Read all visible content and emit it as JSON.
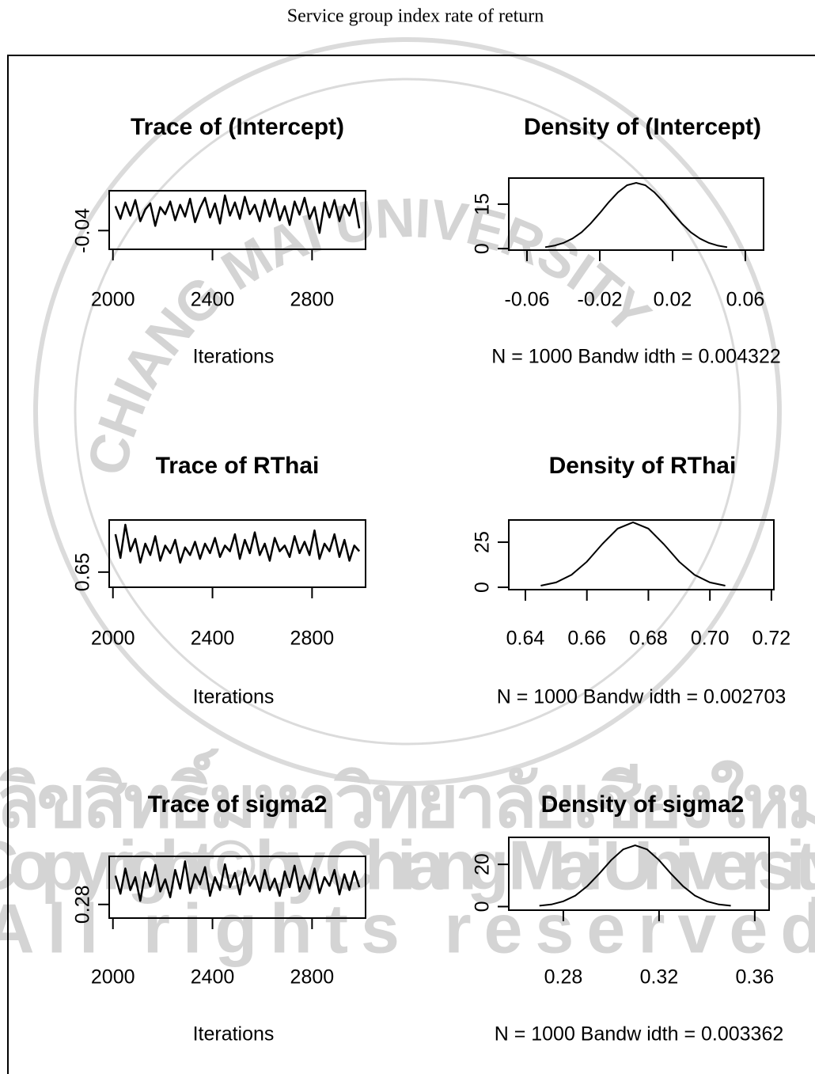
{
  "title": "Service group index rate of return",
  "watermark": [
    "ลิขสิทธิ์มหาวิทยาลัยเชียงใหม่",
    "Copyright© by Chiang Mai University",
    "All rights reserved",
    "CHIANG MAI UNIVERSITY"
  ],
  "chart_data": [
    {
      "type": "trace",
      "title": "Trace of (Intercept)",
      "xlabel": "Iterations",
      "color": "#000000",
      "x": [
        2010,
        2030,
        2050,
        2070,
        2090,
        2110,
        2130,
        2150,
        2170,
        2190,
        2210,
        2230,
        2250,
        2270,
        2290,
        2310,
        2330,
        2350,
        2370,
        2390,
        2410,
        2430,
        2450,
        2470,
        2490,
        2510,
        2530,
        2550,
        2570,
        2590,
        2610,
        2630,
        2650,
        2670,
        2690,
        2710,
        2730,
        2750,
        2770,
        2790,
        2810,
        2830,
        2850,
        2870,
        2890,
        2910,
        2930,
        2950,
        2970,
        2990
      ],
      "values": [
        0.012,
        -0.015,
        0.02,
        -0.008,
        0.025,
        -0.02,
        0.005,
        0.018,
        -0.03,
        0.01,
        -0.005,
        0.022,
        -0.018,
        0.015,
        -0.01,
        0.028,
        -0.022,
        0.008,
        0.03,
        -0.012,
        0.018,
        -0.025,
        0.035,
        -0.008,
        0.02,
        -0.015,
        0.032,
        -0.005,
        0.015,
        -0.02,
        0.025,
        -0.01,
        0.028,
        -0.018,
        0.012,
        -0.028,
        0.022,
        -0.006,
        0.03,
        -0.015,
        0.01,
        -0.045,
        0.02,
        -0.012,
        0.025,
        -0.02,
        0.015,
        -0.008,
        0.028,
        -0.035
      ],
      "xlim": [
        1985,
        3015
      ],
      "ylim": [
        -0.08,
        0.045
      ],
      "xticks": [
        2000,
        2400,
        2800
      ],
      "yticks": [
        -0.04
      ]
    },
    {
      "type": "density",
      "title": "Density of (Intercept)",
      "xlabel": "N = 1000   Bandw idth = 0.004322",
      "color": "#000000",
      "x": [
        -0.05,
        -0.045,
        -0.04,
        -0.035,
        -0.03,
        -0.025,
        -0.02,
        -0.015,
        -0.01,
        -0.005,
        0,
        0.005,
        0.01,
        0.015,
        0.02,
        0.025,
        0.03,
        0.035,
        0.04,
        0.045,
        0.05
      ],
      "values": [
        0.5,
        1.0,
        1.9,
        3.4,
        5.5,
        8.5,
        12.0,
        15.7,
        19.0,
        21.4,
        22.2,
        21.4,
        19.0,
        15.7,
        12.0,
        8.5,
        5.5,
        3.4,
        1.9,
        1.0,
        0.5
      ],
      "xlim": [
        -0.07,
        0.07
      ],
      "ylim": [
        -0.5,
        23.8
      ],
      "xticks": [
        -0.06,
        -0.02,
        0.02,
        0.06
      ],
      "yticks": [
        0,
        15
      ]
    },
    {
      "type": "trace",
      "title": "Trace of RThai",
      "xlabel": "Iterations",
      "color": "#000000",
      "x": [
        2010,
        2030,
        2050,
        2070,
        2090,
        2110,
        2130,
        2150,
        2170,
        2190,
        2210,
        2230,
        2250,
        2270,
        2290,
        2310,
        2330,
        2350,
        2370,
        2390,
        2410,
        2430,
        2450,
        2470,
        2490,
        2510,
        2530,
        2550,
        2570,
        2590,
        2610,
        2630,
        2650,
        2670,
        2690,
        2710,
        2730,
        2750,
        2770,
        2790,
        2810,
        2830,
        2850,
        2870,
        2890,
        2910,
        2930,
        2950,
        2970,
        2990
      ],
      "values": [
        0.69,
        0.665,
        0.7,
        0.672,
        0.685,
        0.66,
        0.68,
        0.668,
        0.688,
        0.662,
        0.678,
        0.67,
        0.684,
        0.66,
        0.676,
        0.668,
        0.682,
        0.664,
        0.68,
        0.67,
        0.686,
        0.666,
        0.678,
        0.672,
        0.69,
        0.664,
        0.684,
        0.67,
        0.692,
        0.668,
        0.68,
        0.662,
        0.686,
        0.672,
        0.678,
        0.666,
        0.688,
        0.67,
        0.682,
        0.668,
        0.694,
        0.664,
        0.68,
        0.672,
        0.69,
        0.666,
        0.684,
        0.662,
        0.678,
        0.672
      ],
      "xlim": [
        1985,
        3015
      ],
      "ylim": [
        0.634,
        0.705
      ],
      "xticks": [
        2000,
        2400,
        2800
      ],
      "yticks": [
        0.65
      ]
    },
    {
      "type": "density",
      "title": "Density of RThai",
      "xlabel": "N = 1000   Bandw idth = 0.002703",
      "color": "#000000",
      "x": [
        0.645,
        0.65,
        0.655,
        0.66,
        0.665,
        0.67,
        0.675,
        0.68,
        0.685,
        0.69,
        0.695,
        0.7,
        0.705
      ],
      "values": [
        0.9,
        2.7,
        6.9,
        14.2,
        23.9,
        32.5,
        36.0,
        32.5,
        23.9,
        14.2,
        6.9,
        2.7,
        0.9
      ],
      "xlim": [
        0.6346,
        0.7208
      ],
      "ylim": [
        -1.3,
        37.3
      ],
      "xticks": [
        0.64,
        0.66,
        0.68,
        {
          "value": 0.7,
          "label": "0.70"
        },
        0.72
      ],
      "yticks": [
        0,
        25
      ]
    },
    {
      "type": "trace",
      "title": "Trace of sigma2",
      "xlabel": "Iterations",
      "color": "#000000",
      "x": [
        2010,
        2030,
        2050,
        2070,
        2090,
        2110,
        2130,
        2150,
        2170,
        2190,
        2210,
        2230,
        2250,
        2270,
        2290,
        2310,
        2330,
        2350,
        2370,
        2390,
        2410,
        2430,
        2450,
        2470,
        2490,
        2510,
        2530,
        2550,
        2570,
        2590,
        2610,
        2630,
        2650,
        2670,
        2690,
        2710,
        2730,
        2750,
        2770,
        2790,
        2810,
        2830,
        2850,
        2870,
        2890,
        2910,
        2930,
        2950,
        2970,
        2990
      ],
      "values": [
        0.32,
        0.295,
        0.33,
        0.3,
        0.318,
        0.285,
        0.325,
        0.305,
        0.335,
        0.298,
        0.315,
        0.29,
        0.328,
        0.302,
        0.34,
        0.296,
        0.322,
        0.308,
        0.332,
        0.292,
        0.318,
        0.3,
        0.336,
        0.304,
        0.324,
        0.294,
        0.33,
        0.306,
        0.32,
        0.298,
        0.328,
        0.3,
        0.316,
        0.292,
        0.326,
        0.304,
        0.334,
        0.298,
        0.32,
        0.302,
        0.33,
        0.296,
        0.318,
        0.306,
        0.328,
        0.294,
        0.322,
        0.3,
        0.326,
        0.304
      ],
      "xlim": [
        1985,
        3015
      ],
      "ylim": [
        0.261,
        0.347
      ],
      "xticks": [
        2000,
        2400,
        2800
      ],
      "yticks": [
        0.28
      ]
    },
    {
      "type": "density",
      "title": "Density of sigma2",
      "xlabel": "N = 1000   Bandw idth = 0.003362",
      "color": "#000000",
      "x": [
        0.27,
        0.275,
        0.28,
        0.285,
        0.29,
        0.295,
        0.3,
        0.305,
        0.31,
        0.315,
        0.32,
        0.325,
        0.33,
        0.335,
        0.34,
        0.345,
        0.35
      ],
      "values": [
        0.4,
        1.0,
        2.5,
        5.2,
        9.7,
        15.6,
        22.0,
        27.1,
        29.0,
        27.1,
        22.0,
        15.6,
        9.7,
        5.2,
        2.5,
        1.0,
        0.4
      ],
      "xlim": [
        0.2572,
        0.366
      ],
      "ylim": [
        -1.7,
        32.8
      ],
      "xticks": [
        0.28,
        0.32,
        0.36
      ],
      "yticks": [
        0,
        20
      ]
    }
  ]
}
